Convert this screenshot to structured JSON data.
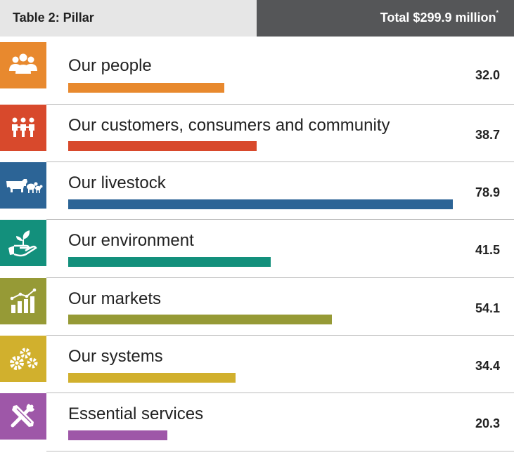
{
  "header": {
    "title": "Table 2: Pillar",
    "total": "Total $299.9 million",
    "total_mark": "*"
  },
  "chart_data": {
    "type": "bar",
    "orientation": "horizontal",
    "xlim": [
      0,
      78.9
    ],
    "categories": [
      "Our people",
      "Our customers, consumers and community",
      "Our livestock",
      "Our environment",
      "Our markets",
      "Our systems",
      "Essential services"
    ],
    "values": [
      32.0,
      38.7,
      78.9,
      41.5,
      54.1,
      34.4,
      20.3
    ],
    "value_labels": [
      "32.0",
      "38.7",
      "78.9",
      "41.5",
      "54.1",
      "34.4",
      "20.3"
    ],
    "colors": [
      "#e8892e",
      "#d8492c",
      "#2c6496",
      "#13907c",
      "#969a36",
      "#d1b02d",
      "#9e57a8"
    ],
    "icons": [
      "people-icon",
      "community-icon",
      "livestock-icon",
      "environment-icon",
      "markets-icon",
      "systems-icon",
      "tools-icon"
    ]
  }
}
